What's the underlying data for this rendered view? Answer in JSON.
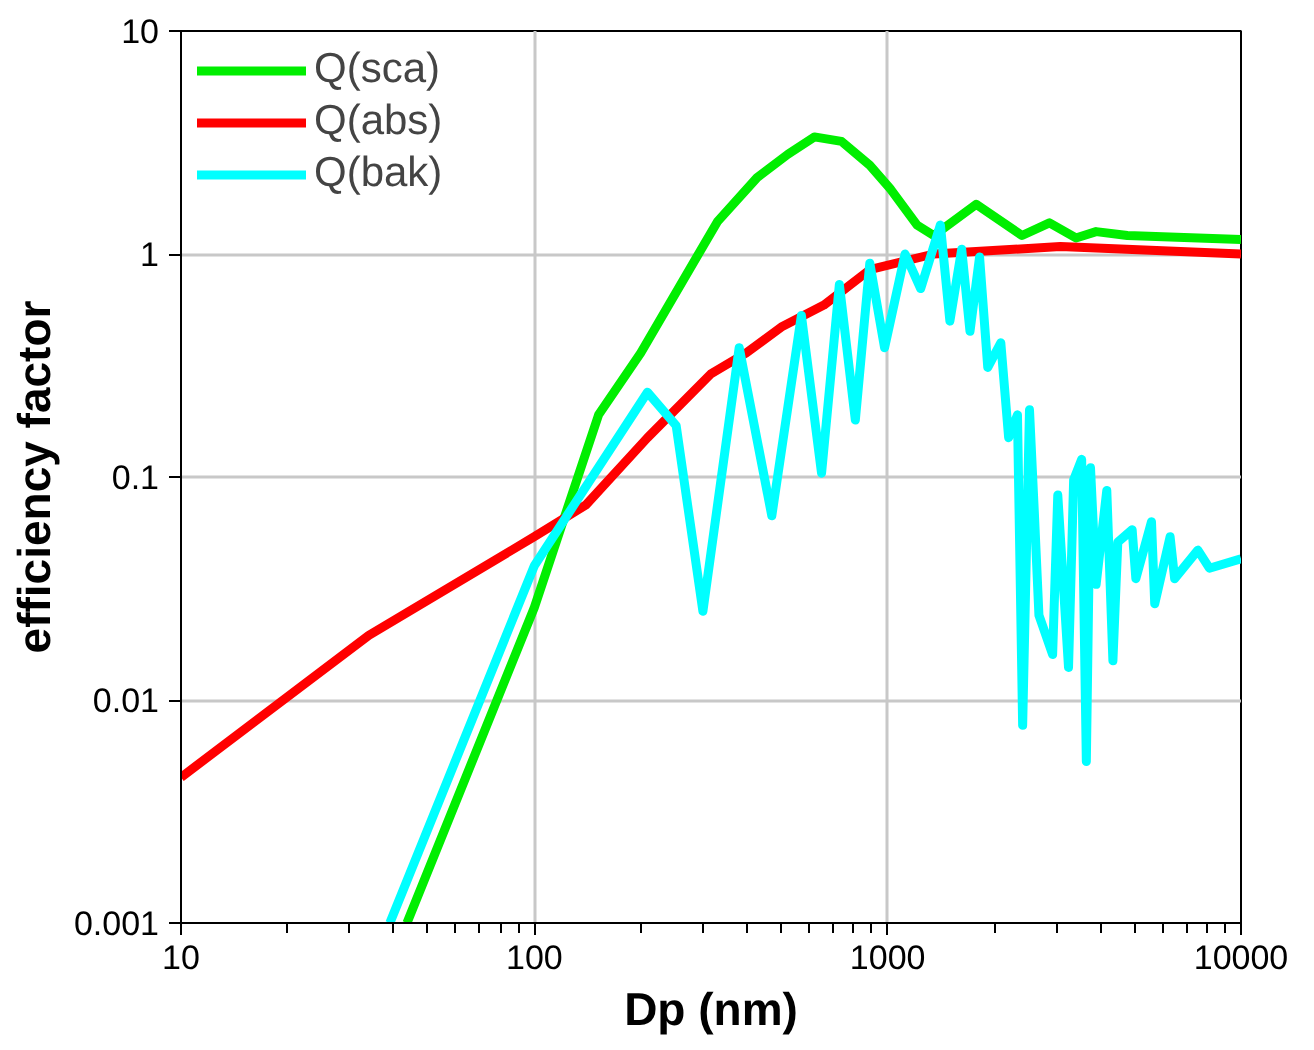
{
  "chart_data": {
    "type": "line",
    "xlabel": "Dp (nm)",
    "ylabel": "efficiency factor",
    "log": "xy",
    "grid": true,
    "legend": "top left",
    "line_style": "solid",
    "marker": "none",
    "xlim": [
      10,
      10000
    ],
    "ylim": [
      0.001,
      10
    ],
    "xticks": [
      10,
      100,
      1000,
      10000
    ],
    "yticks": [
      0.001,
      0.01,
      0.1,
      1,
      10
    ],
    "series": [
      {
        "name": "Q(sca)",
        "color": "#00ee00",
        "x": [
          43.6,
          100,
          152,
          200,
          330,
          427,
          522,
          620,
          740,
          890,
          1020,
          1210,
          1350,
          1780,
          2400,
          2870,
          3410,
          3890,
          4770,
          10000
        ],
        "values": [
          0.001,
          0.026,
          0.19,
          0.36,
          1.4,
          2.2,
          2.8,
          3.35,
          3.2,
          2.5,
          1.95,
          1.35,
          1.21,
          1.67,
          1.21,
          1.38,
          1.18,
          1.26,
          1.21,
          1.16
        ]
      },
      {
        "name": "Q(abs)",
        "color": "#ff0000",
        "x": [
          10,
          34,
          100,
          140,
          209,
          316,
          398,
          500,
          660,
          890,
          1350,
          3080,
          10000
        ],
        "values": [
          0.0045,
          0.0195,
          0.054,
          0.075,
          0.15,
          0.29,
          0.36,
          0.47,
          0.59,
          0.85,
          1.0,
          1.08,
          1.0
        ]
      },
      {
        "name": "Q(bak)",
        "color": "#00ffff",
        "x": [
          39,
          100,
          209,
          252,
          300,
          380,
          470,
          570,
          650,
          730,
          810,
          890,
          980,
          1120,
          1240,
          1410,
          1500,
          1620,
          1710,
          1820,
          1920,
          2090,
          2200,
          2330,
          2410,
          2520,
          2600,
          2680,
          2930,
          3030,
          3250,
          3360,
          3540,
          3650,
          3750,
          3890,
          4170,
          4340,
          4480,
          4920,
          5040,
          5580,
          5700,
          6300,
          6490,
          7550,
          8140,
          10000
        ],
        "values": [
          0.001,
          0.04,
          0.24,
          0.17,
          0.025,
          0.38,
          0.067,
          0.53,
          0.104,
          0.73,
          0.18,
          0.91,
          0.38,
          1.0,
          0.7,
          1.35,
          0.5,
          1.05,
          0.45,
          0.97,
          0.31,
          0.4,
          0.15,
          0.19,
          0.0077,
          0.2,
          0.07,
          0.024,
          0.016,
          0.083,
          0.014,
          0.097,
          0.12,
          0.0053,
          0.11,
          0.033,
          0.087,
          0.015,
          0.051,
          0.058,
          0.035,
          0.063,
          0.027,
          0.054,
          0.035,
          0.047,
          0.039,
          0.043
        ]
      }
    ]
  }
}
